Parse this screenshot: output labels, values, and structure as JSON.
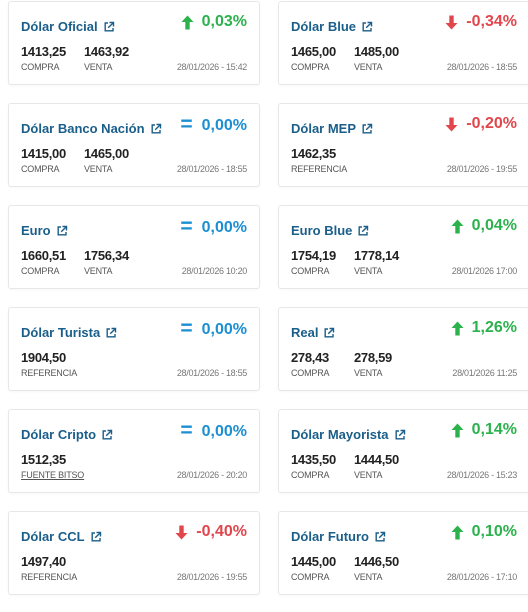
{
  "colors": {
    "title": "#1a5e8a",
    "up": "#2bb24c",
    "down": "#e0464c",
    "equal": "#1b8fd2"
  },
  "cards": [
    {
      "title": "Dólar Oficial",
      "dir": "up",
      "change": "0,03%",
      "v1": "1413,25",
      "l1": "COMPRA",
      "v2": "1463,92",
      "l2": "VENTA",
      "date": "28/01/2026 - 15:42"
    },
    {
      "title": "Dólar Blue",
      "dir": "down",
      "change": "-0,34%",
      "v1": "1465,00",
      "l1": "COMPRA",
      "v2": "1485,00",
      "l2": "VENTA",
      "date": "28/01/2026 - 18:55"
    },
    {
      "title": "Dólar Banco Nación",
      "dir": "eq",
      "change": "0,00%",
      "v1": "1415,00",
      "l1": "COMPRA",
      "v2": "1465,00",
      "l2": "VENTA",
      "date": "28/01/2026 - 18:55"
    },
    {
      "title": "Dólar MEP",
      "dir": "down",
      "change": "-0,20%",
      "v1": "1462,35",
      "l1": "REFERENCIA",
      "v2": "",
      "l2": "",
      "date": "28/01/2026 - 19:55"
    },
    {
      "title": "Euro",
      "dir": "eq",
      "change": "0,00%",
      "v1": "1660,51",
      "l1": "COMPRA",
      "v2": "1756,34",
      "l2": "VENTA",
      "date": "28/01/2026 10:20"
    },
    {
      "title": "Euro Blue",
      "dir": "up",
      "change": "0,04%",
      "v1": "1754,19",
      "l1": "COMPRA",
      "v2": "1778,14",
      "l2": "VENTA",
      "date": "28/01/2026 17:00"
    },
    {
      "title": "Dólar Turista",
      "dir": "eq",
      "change": "0,00%",
      "v1": "1904,50",
      "l1": "REFERENCIA",
      "v2": "",
      "l2": "",
      "date": "28/01/2026 - 18:55"
    },
    {
      "title": "Real",
      "dir": "up",
      "change": "1,26%",
      "v1": "278,43",
      "l1": "COMPRA",
      "v2": "278,59",
      "l2": "VENTA",
      "date": "28/01/2026 11:25"
    },
    {
      "title": "Dólar Cripto",
      "dir": "eq",
      "change": "0,00%",
      "v1": "1512,35",
      "l1": "FUENTE BITSO",
      "l1link": true,
      "v2": "",
      "l2": "",
      "date": "28/01/2026 - 20:20"
    },
    {
      "title": "Dólar Mayorista",
      "dir": "up",
      "change": "0,14%",
      "v1": "1435,50",
      "l1": "COMPRA",
      "v2": "1444,50",
      "l2": "VENTA",
      "date": "28/01/2026 - 15:23"
    },
    {
      "title": "Dólar CCL",
      "dir": "down",
      "change": "-0,40%",
      "v1": "1497,40",
      "l1": "REFERENCIA",
      "v2": "",
      "l2": "",
      "date": "28/01/2026 - 19:55"
    },
    {
      "title": "Dólar Futuro",
      "dir": "up",
      "change": "0,10%",
      "v1": "1445,00",
      "l1": "COMPRA",
      "v2": "1446,50",
      "l2": "VENTA",
      "date": "28/01/2026 - 17:10"
    }
  ]
}
